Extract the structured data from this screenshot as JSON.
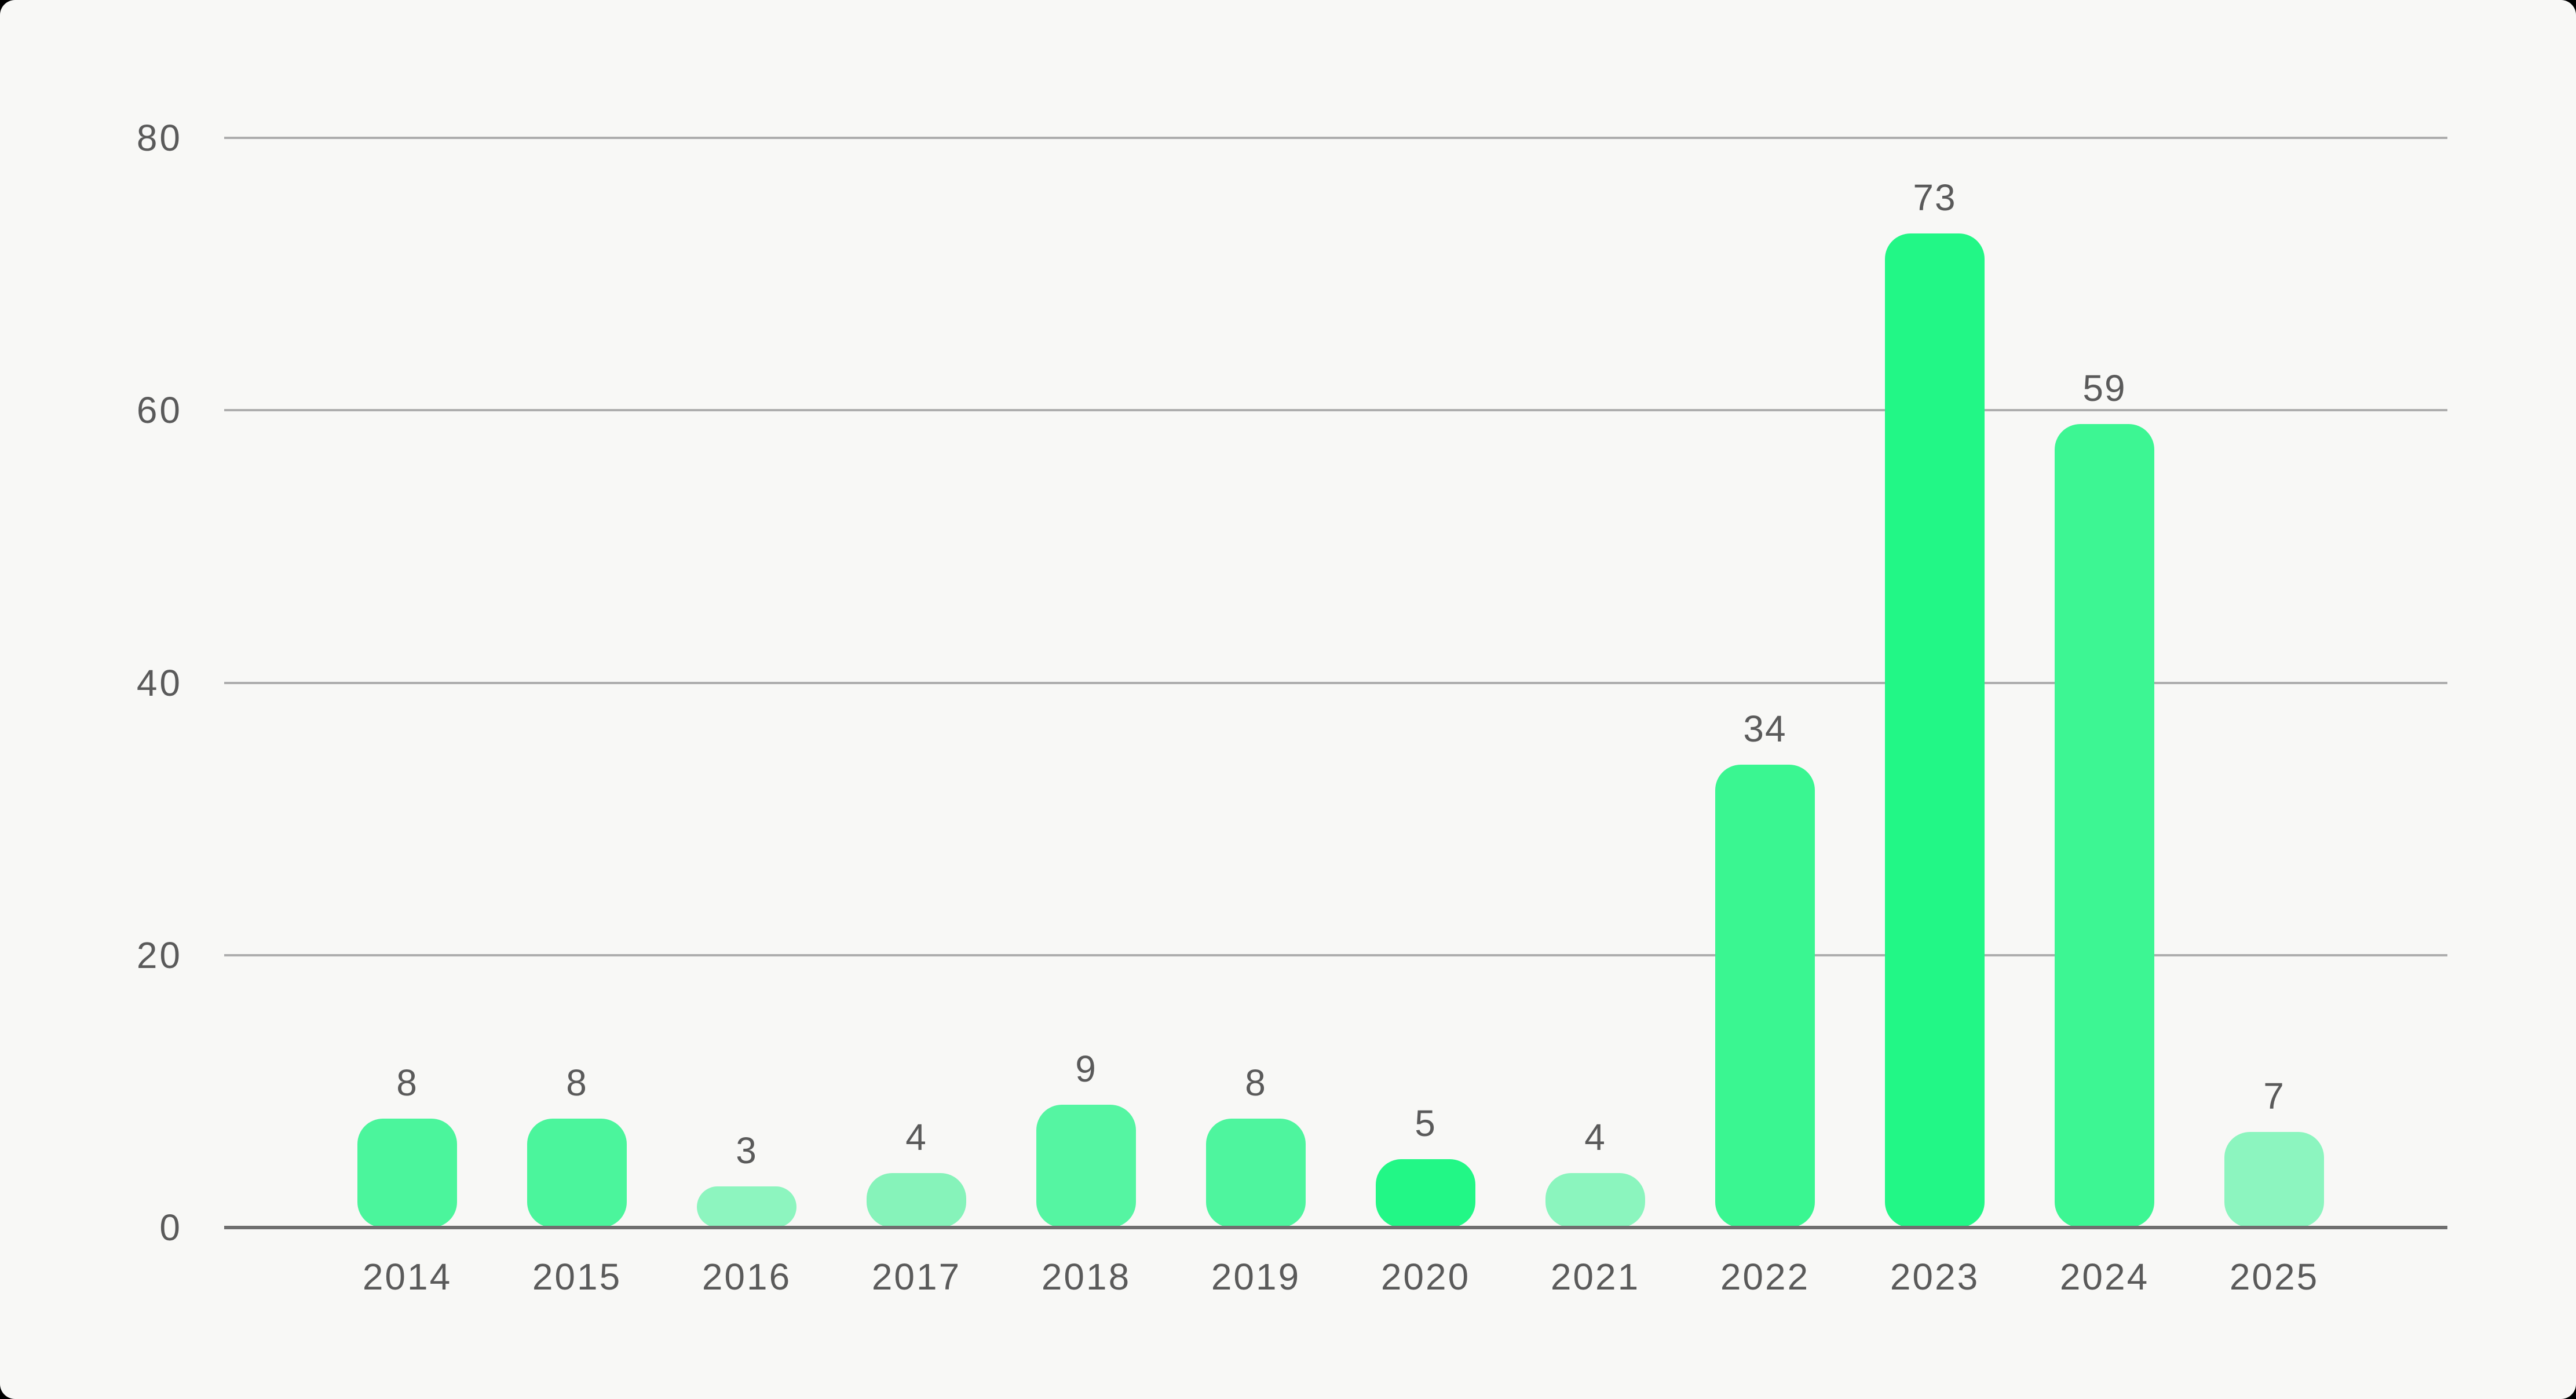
{
  "page": {
    "background": "#f8f8f6",
    "corner_backdrop": "#000000"
  },
  "colors": {
    "gridline": "#adadad",
    "zero_axis": "#6f6f6f",
    "label_text": "#5a5a5a"
  },
  "chart_data": {
    "type": "bar",
    "categories": [
      "2014",
      "2015",
      "2016",
      "2017",
      "2018",
      "2019",
      "2020",
      "2021",
      "2022",
      "2023",
      "2024",
      "2025"
    ],
    "values": [
      8,
      8,
      3,
      4,
      9,
      8,
      5,
      4,
      34,
      73,
      59,
      7
    ],
    "value_labels": [
      "8",
      "8",
      "3",
      "4",
      "9",
      "8",
      "5",
      "4",
      "34",
      "73",
      "59",
      "7"
    ],
    "bar_colors": [
      "#4BF59C",
      "#4BF59C",
      "#8DF5BF",
      "#86F3BA",
      "#55F5A2",
      "#4EF59E",
      "#22F786",
      "#8BF5BE",
      "#3AF691",
      "#22F786",
      "#3DF693",
      "#8CF5BF"
    ],
    "ylim": [
      0,
      80
    ],
    "yticks": [
      0,
      20,
      40,
      60,
      80
    ],
    "ytick_labels": [
      "0",
      "20",
      "40",
      "60",
      "80"
    ],
    "grid": true,
    "legend": "none"
  }
}
